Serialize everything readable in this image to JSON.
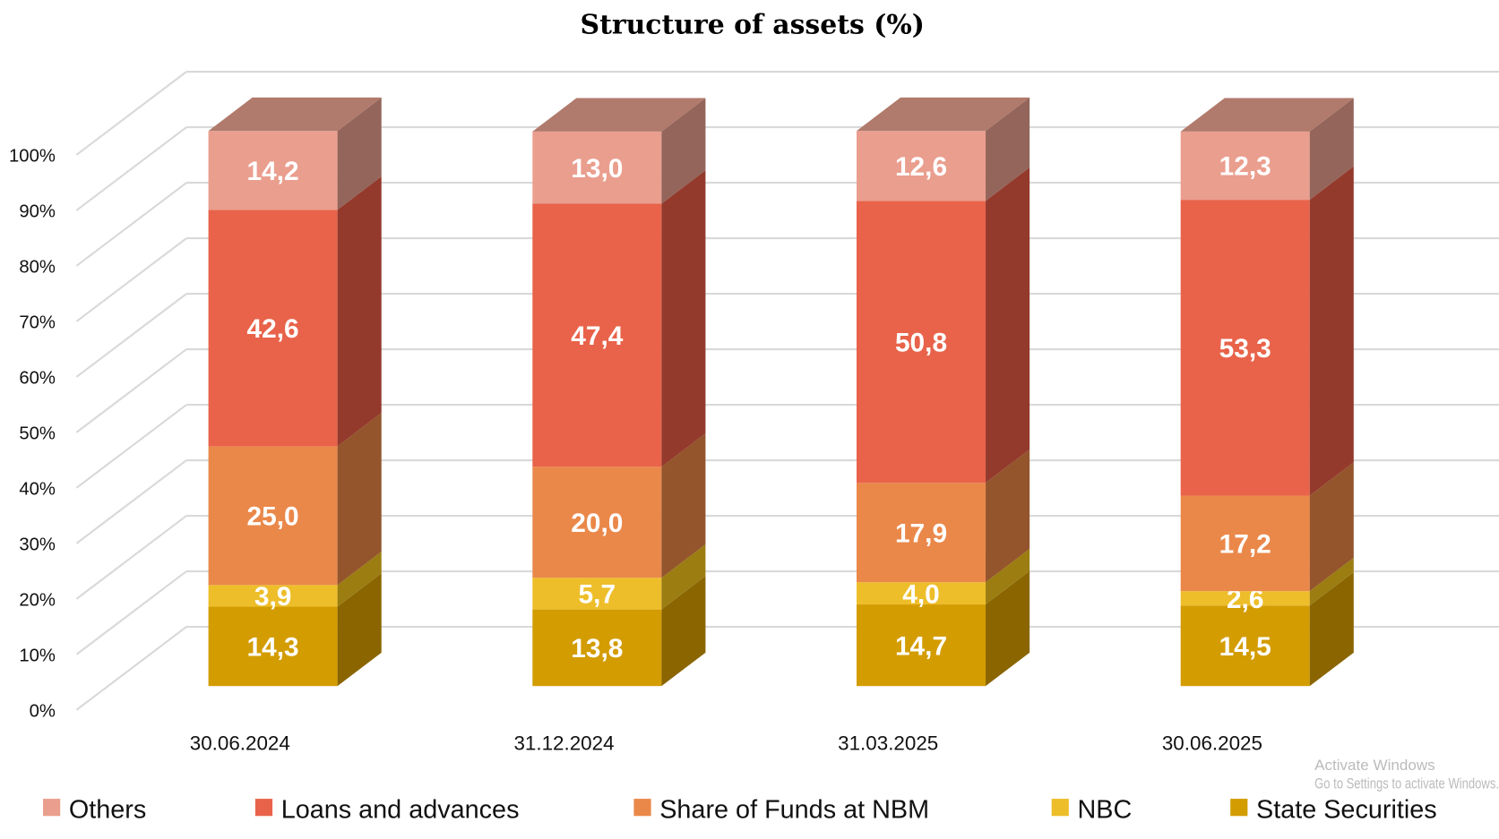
{
  "chart_data": {
    "type": "bar",
    "stacked": true,
    "three_d": true,
    "title": "Structure of assets (%)",
    "categories": [
      "30.06.2024",
      "31.12.2024",
      "31.03.2025",
      "30.06.2025"
    ],
    "series": [
      {
        "name": "State Securities",
        "values": [
          14.3,
          13.8,
          14.7,
          14.5
        ],
        "labels": [
          "14,3",
          "13,8",
          "14,7",
          "14,5"
        ],
        "color": "#D39C00",
        "side": "#8A6500"
      },
      {
        "name": "NBC",
        "values": [
          3.9,
          5.7,
          4.0,
          2.6
        ],
        "labels": [
          "3,9",
          "5,7",
          "4,0",
          "2,6"
        ],
        "color": "#EDBE2A",
        "side": "#9B7D12"
      },
      {
        "name": "Share of Funds at NBM",
        "values": [
          25.0,
          20.0,
          17.9,
          17.2
        ],
        "labels": [
          "25,0",
          "20,0",
          "17,9",
          "17,2"
        ],
        "color": "#EA884A",
        "side": "#94552C"
      },
      {
        "name": "Loans and advances",
        "values": [
          42.6,
          47.4,
          50.8,
          53.3
        ],
        "labels": [
          "42,6",
          "47,4",
          "50,8",
          "53,3"
        ],
        "color": "#E8634A",
        "side": "#933A2C"
      },
      {
        "name": "Others",
        "values": [
          14.2,
          13.0,
          12.6,
          12.3
        ],
        "labels": [
          "14,2",
          "13,0",
          "12,6",
          "12,3"
        ],
        "color": "#EA9E8E",
        "side": "#94655A",
        "top": "#B07A6C"
      }
    ],
    "ylim": [
      0,
      100
    ],
    "yticks": [
      "0%",
      "10%",
      "20%",
      "30%",
      "40%",
      "50%",
      "60%",
      "70%",
      "80%",
      "90%",
      "100%"
    ],
    "grid": true,
    "legend_placement": "bottom",
    "legend_order": [
      "Others",
      "Loans and advances",
      "Share of Funds at NBM",
      "NBC",
      "State Securities"
    ]
  },
  "watermark": {
    "line1": "Activate Windows",
    "line2": "Go to Settings to activate Windows."
  }
}
